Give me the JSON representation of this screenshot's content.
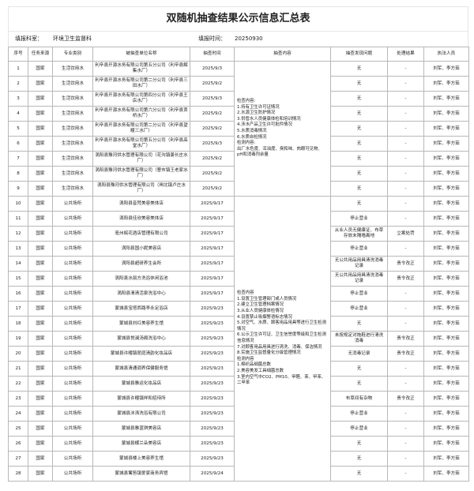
{
  "title": "双随机抽查结果公示信息汇总表",
  "info": {
    "dept_label": "填报科室：",
    "dept_value": "环境卫生监督科",
    "time_label": "填报时间：",
    "time_value": "20250930"
  },
  "headers": [
    "序号",
    "任务来源",
    "专业类别",
    "被抽查单位名称",
    "抽查时间",
    "抽查内容",
    "抽查发现问题",
    "处理结果",
    "执法人员"
  ],
  "content_water": "检查内容:\n1.持有卫生许可证情况\n2.水源卫生防护情况\n3.供管水人员健康体检和培训情况\n4.涉水产品卫生许可批件情况\n5.水质消毒情况\n6.水质自检情况\n检测内容:\n出厂水色度、浑浊度、臭和味、肉眼可见物、pH和消毒剂余量",
  "content_public": "检查内容\n1.设置卫生管理部门或人员情况\n2.建立卫生管理档案情况\n3.从业人员健康体检情况\n4.设置禁止吸烟警语标志情况\n5.对空气、水质、顾客用品用具等进行卫生检测情况\n6.公示卫生许可证、卫生信誉度等级和卫生检测信息情况\n7.对顾客用品用具进行清洗、消毒、保洁情况\n8.实施卫生监督量化分级管理情况\n检测内容\n1.棉织品细菌总数\n2.美容美发工具细菌总数\n3.室内空气中CO2、PM10、甲醛、苯、甲苯、二甲苯",
  "rows": [
    [
      "1",
      "国家",
      "生活饮用水",
      "利辛县开源水务有限公司第五分公司（利辛县解集水厂）",
      "2025/9/3",
      "无",
      "-",
      "刘军、李方茹"
    ],
    [
      "2",
      "国家",
      "生活饮用水",
      "利辛县开源水务有限公司第二分公司（利辛县三田水厂）",
      "2025/9/2",
      "无",
      "-",
      "刘军、李方茹"
    ],
    [
      "3",
      "国家",
      "生活饮用水",
      "利辛县开源水务有限公司第四分公司（利辛县王店水厂）",
      "2025/9/3",
      "无",
      "-",
      "刘军、李方茹"
    ],
    [
      "4",
      "国家",
      "生活饮用水",
      "利辛县开源水务有限公司第六分公司（利辛县贾桥水厂）",
      "2025/9/2",
      "无",
      "-",
      "刘军、李方茹"
    ],
    [
      "5",
      "国家",
      "生活饮用水",
      "利辛县开源水务有限公司第二分公司（利辛县望疃三水厂）",
      "2025/9/2",
      "无",
      "-",
      "刘军、李方茹"
    ],
    [
      "6",
      "国家",
      "生活饮用水",
      "利辛县开源水务有限公司第五分公司（利辛县高堂水厂）",
      "2025/9/3",
      "无",
      "-",
      "刘军、李方茹"
    ],
    [
      "7",
      "国家",
      "生活饮用水",
      "涡阳县豫河供水管理有限公司（花沟镇姜长庄水厂）",
      "2025/9/2",
      "无",
      "-",
      "刘军、李方茹"
    ],
    [
      "8",
      "国家",
      "生活饮用水",
      "涡阳县豫河供水管理有限公司（曹市镇王老家水厂）",
      "2025/9/2",
      "无",
      "-",
      "刘军、李方茹"
    ],
    [
      "9",
      "国家",
      "生活饮用水",
      "涡阳县豫河供水管理有限公司（闸北镇卢庄水厂）",
      "2025/9/2",
      "无",
      "-",
      "刘军、李方茹"
    ],
    [
      "10",
      "国家",
      "公共场所",
      "涡阳县音梵美容美体店",
      "2025/9/17",
      "无",
      "-",
      "刘军、李方茹"
    ],
    [
      "11",
      "国家",
      "公共场所",
      "涡阳县佳欣美容美体店",
      "2025/9/17",
      "停止营业",
      "-",
      "刘军、李方茹"
    ],
    [
      "12",
      "国家",
      "公共场所",
      "亳州皖花酒店管理有限公司",
      "2025/9/17",
      "从业人员无健康证、布草存放未隔墙离地",
      "立案处罚",
      "刘军、李方茹"
    ],
    [
      "13",
      "国家",
      "公共场所",
      "涡阳县国小妮美容店",
      "2025/9/17",
      "停止营业",
      "-",
      "刘军、李方茹"
    ],
    [
      "14",
      "国家",
      "公共场所",
      "涡阳县超研养生会所",
      "2025/9/17",
      "无公共用品用具清洗消毒记录",
      "责令改正",
      "刘军、李方茹"
    ],
    [
      "15",
      "国家",
      "公共场所",
      "涡阳县水丽方洗浴休闲浴池",
      "2025/9/17",
      "无公共用品用具清洗消毒记录",
      "责令改正",
      "刘军、李方茹"
    ],
    [
      "16",
      "国家",
      "公共场所",
      "涡阳县清清活泉洗浴中心",
      "2025/9/17",
      "停止营业",
      "-",
      "刘军、李方茹"
    ],
    [
      "17",
      "国家",
      "公共场所",
      "蒙城县宝塔西路李永足浴店",
      "2025/9/23",
      "停止营业",
      "-",
      "刘军、李方茹"
    ],
    [
      "18",
      "国家",
      "公共场所",
      "蒙城县刘红美容养生馆",
      "2025/9/23",
      "无",
      "-",
      "刘军、李方茹"
    ],
    [
      "19",
      "国家",
      "公共场所",
      "蒙城县悦澜汤阁洗浴中心",
      "2025/9/23",
      "未按规定对拖鞋进行清洗消毒",
      "责令改正",
      "刘军、李方茹"
    ],
    [
      "20",
      "国家",
      "公共场所",
      "蒙城县许疃镇昆庭清韵化妆品店",
      "2025/9/23",
      "无消毒记录",
      "责令改正",
      "刘军、李方茹"
    ],
    [
      "21",
      "国家",
      "公共场所",
      "蒙城县清通调养保健服务馆",
      "2025/9/23",
      "无",
      "-",
      "刘军、李方茹"
    ],
    [
      "22",
      "国家",
      "公共场所",
      "蒙城县雅运化妆品店",
      "2025/9/23",
      "无",
      "-",
      "刘军、李方茹"
    ],
    [
      "23",
      "国家",
      "公共场所",
      "蒙城县许疃镇祥和招待所",
      "2025/9/23",
      "布草间有杂物",
      "责令改正",
      "刘军、李方茹"
    ],
    [
      "24",
      "国家",
      "公共场所",
      "蒙城县沐涛洗浴有限公司",
      "2025/9/23",
      "停止营业",
      "-",
      "刘军、李方茹"
    ],
    [
      "25",
      "国家",
      "公共场所",
      "蒙城县雅蓝琪美容店",
      "2025/9/23",
      "停止营业",
      "-",
      "刘军、李方茹"
    ],
    [
      "26",
      "国家",
      "公共场所",
      "蒙城县蝶兰朵美容店",
      "2025/9/23",
      "无",
      "-",
      "刘军、李方茹"
    ],
    [
      "27",
      "国家",
      "公共场所",
      "蒙城县楼上美容养生馆",
      "2025/9/23",
      "无",
      "-",
      "刘军、李方茹"
    ],
    [
      "28",
      "国家",
      "公共场所",
      "蒙城县篱笆镇爱家商务宾馆",
      "2025/9/24",
      "无",
      "-",
      "刘军、李方茹"
    ]
  ]
}
